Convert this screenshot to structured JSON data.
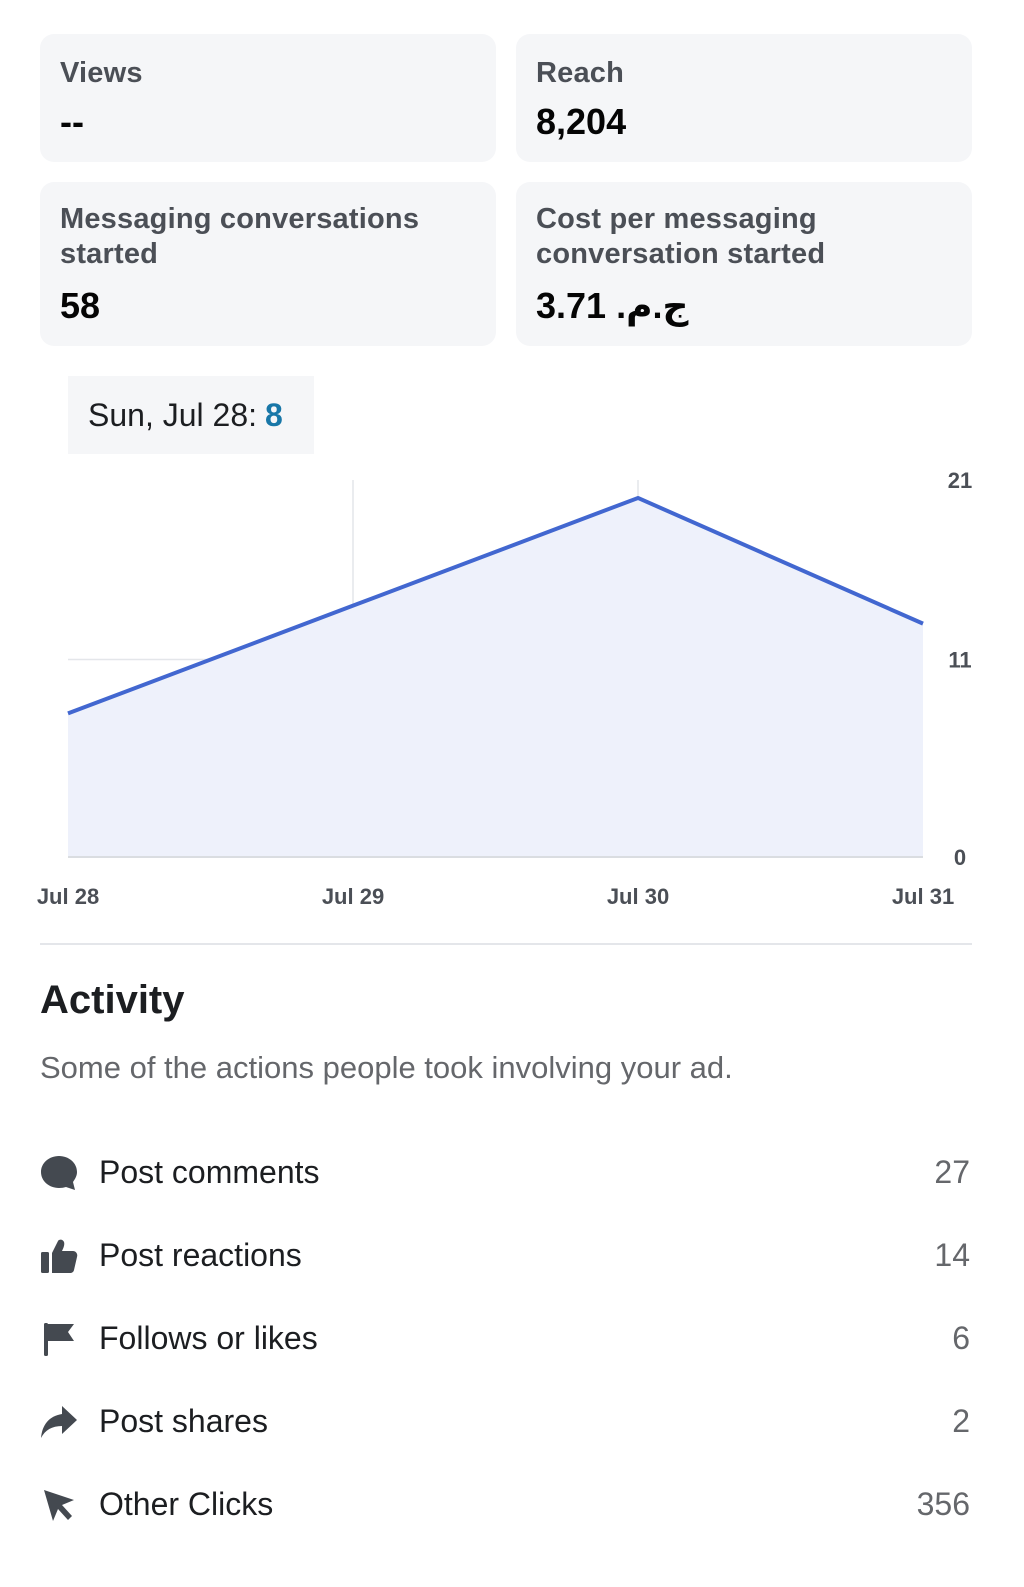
{
  "metrics": [
    {
      "label": "Views",
      "value": "--"
    },
    {
      "label": "Reach",
      "value": "8,204"
    },
    {
      "label": "Messaging conversations started",
      "label_lines": [
        "Messaging conversations",
        "started"
      ],
      "value": "58"
    },
    {
      "label": "Cost per messaging conversation started",
      "label_lines": [
        "Cost per messaging",
        "conversation started"
      ],
      "value": "ج.م.‏ 3.71"
    }
  ],
  "tooltip": {
    "date": "Sun, Jul 28:",
    "value": "8"
  },
  "chart_data": {
    "type": "area",
    "x": [
      "Jul 28",
      "Jul 29",
      "Jul 30",
      "Jul 31"
    ],
    "series": [
      {
        "values": [
          8,
          14,
          20,
          13
        ]
      }
    ],
    "yticks": [
      0,
      11,
      21
    ],
    "ylim": [
      0,
      21
    ],
    "y_axis_side": "right",
    "grid": true,
    "line_color": "#4267d0",
    "fill_color": "#eef1fb"
  },
  "activity": {
    "title": "Activity",
    "description": "Some of the actions people took involving your ad.",
    "items": [
      {
        "icon": "comment-icon",
        "label": "Post comments",
        "count": "27"
      },
      {
        "icon": "thumbs-up-icon",
        "label": "Post reactions",
        "count": "14"
      },
      {
        "icon": "flag-icon",
        "label": "Follows or likes",
        "count": "6"
      },
      {
        "icon": "share-icon",
        "label": "Post shares",
        "count": "2"
      },
      {
        "icon": "cursor-icon",
        "label": "Other Clicks",
        "count": "356"
      }
    ]
  },
  "colors": {
    "card_bg": "#f5f6f8",
    "accent": "#1877a8",
    "line": "#4267d0",
    "muted": "#65676b"
  }
}
